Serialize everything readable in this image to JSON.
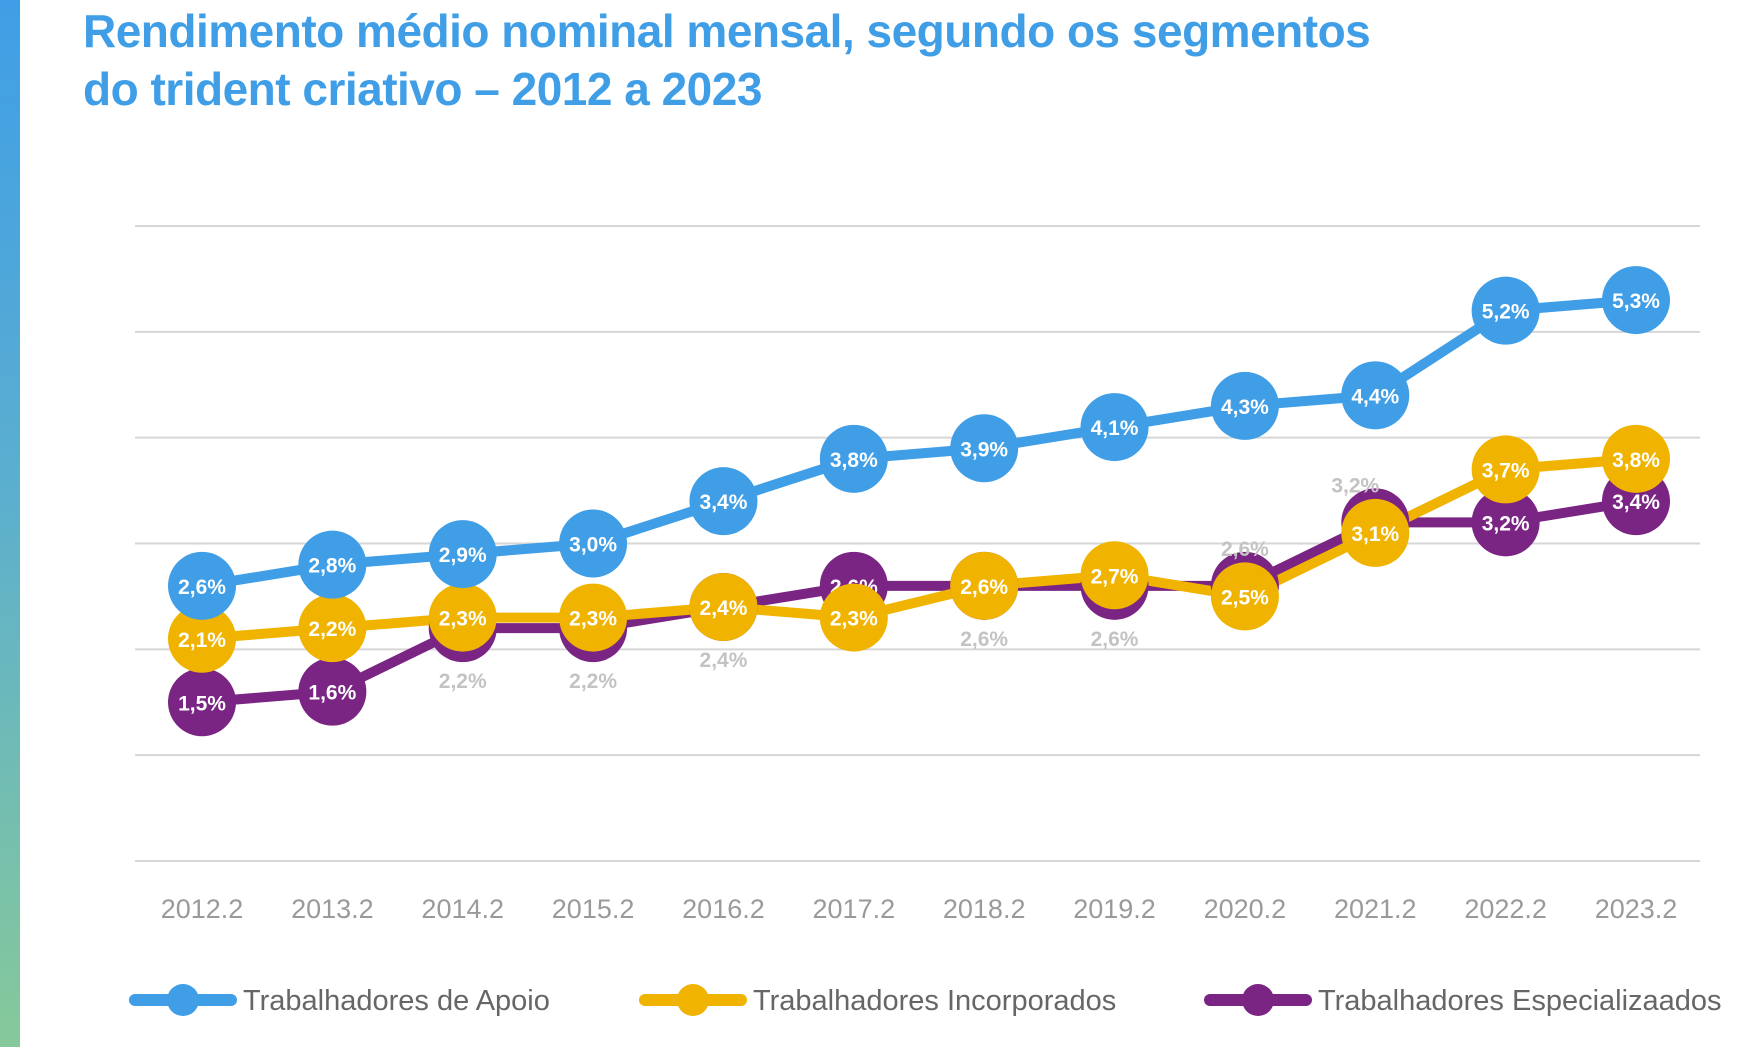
{
  "chart_data": {
    "type": "line",
    "title": "Rendimento médio nominal mensal, segundo os segmentos do trident criativo – 2012 a 2023",
    "categories": [
      "2012.2",
      "2013.2",
      "2014.2",
      "2015.2",
      "2016.2",
      "2017.2",
      "2018.2",
      "2019.2",
      "2020.2",
      "2021.2",
      "2022.2",
      "2023.2"
    ],
    "series": [
      {
        "name": "Trabalhadores de Apoio",
        "color": "#3f9ee6",
        "values": [
          2.6,
          2.8,
          2.9,
          3.0,
          3.4,
          3.8,
          3.9,
          4.1,
          4.3,
          4.4,
          5.2,
          5.3
        ],
        "labels": [
          "2,6%",
          "2,8%",
          "2,9%",
          "3,0%",
          "3,4%",
          "3,8%",
          "3,9%",
          "4,1%",
          "4,3%",
          "4,4%",
          "5,2%",
          "5,3%"
        ]
      },
      {
        "name": "Trabalhadores Incorporados",
        "color": "#f0b400",
        "values": [
          2.1,
          2.2,
          2.3,
          2.3,
          2.4,
          2.3,
          2.6,
          2.7,
          2.5,
          3.1,
          3.7,
          3.8
        ],
        "labels": [
          "2,1%",
          "2,2%",
          "2,3%",
          "2,3%",
          "2,4%",
          "2,3%",
          "2,6%",
          "2,7%",
          "2,5%",
          "3,1%",
          "3,7%",
          "3,8%"
        ]
      },
      {
        "name": "Trabalhadores Especializaados",
        "color": "#7a2483",
        "values": [
          1.5,
          1.6,
          2.2,
          2.2,
          2.4,
          2.6,
          2.6,
          2.6,
          2.6,
          3.2,
          3.2,
          3.4
        ],
        "labels": [
          "1,5%",
          "1,6%",
          "2,2%",
          "2,2%",
          "2,4%",
          "2,6%",
          "2,6%",
          "2,6%",
          "2,6%",
          "3,2%",
          "3,2%",
          "3,4%"
        ]
      }
    ],
    "ylim": [
      0,
      6
    ],
    "grid": true,
    "legend_position": "bottom"
  }
}
